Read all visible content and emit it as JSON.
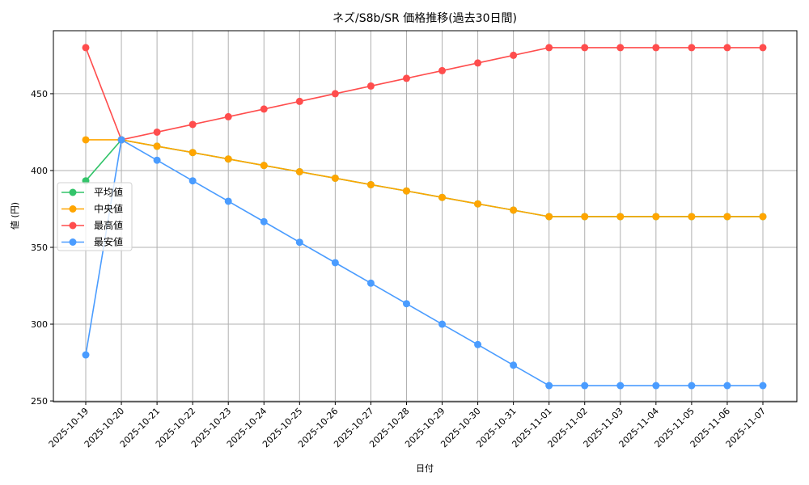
{
  "chart_data": {
    "type": "line",
    "title": "ネズ/S8b/SR 価格推移(過去30日間)",
    "xlabel": "日付",
    "ylabel": "値 (円)",
    "ylim": [
      249.5,
      491
    ],
    "yticks": [
      250,
      300,
      350,
      400,
      450
    ],
    "grid": true,
    "legend_position": "center left",
    "categories": [
      "2025-10-19",
      "2025-10-20",
      "2025-10-21",
      "2025-10-22",
      "2025-10-23",
      "2025-10-24",
      "2025-10-25",
      "2025-10-26",
      "2025-10-27",
      "2025-10-28",
      "2025-10-29",
      "2025-10-30",
      "2025-10-31",
      "2025-11-01",
      "2025-11-02",
      "2025-11-03",
      "2025-11-04",
      "2025-11-05",
      "2025-11-06",
      "2025-11-07"
    ],
    "series": [
      {
        "name": "平均値",
        "color": "#33c46a",
        "values": [
          393.3,
          420,
          415.8,
          411.7,
          407.5,
          403.3,
          399.2,
          395.0,
          390.8,
          386.7,
          382.5,
          378.3,
          374.2,
          370,
          370,
          370,
          370,
          370,
          370,
          370
        ]
      },
      {
        "name": "中央値",
        "color": "#ffa500",
        "values": [
          420,
          420,
          415.8,
          411.7,
          407.5,
          403.3,
          399.2,
          395.0,
          390.8,
          386.7,
          382.5,
          378.3,
          374.2,
          370,
          370,
          370,
          370,
          370,
          370,
          370
        ]
      },
      {
        "name": "最高値",
        "color": "#ff4d4d",
        "values": [
          480,
          420,
          425,
          430,
          435,
          440,
          445,
          450,
          455,
          460,
          465,
          470,
          475,
          480,
          480,
          480,
          480,
          480,
          480,
          480
        ]
      },
      {
        "name": "最安値",
        "color": "#4a9cff",
        "values": [
          280,
          420,
          406.7,
          393.3,
          380,
          366.7,
          353.3,
          340,
          326.7,
          313.3,
          300,
          286.7,
          273.3,
          260,
          260,
          260,
          260,
          260,
          260,
          260
        ]
      }
    ]
  }
}
